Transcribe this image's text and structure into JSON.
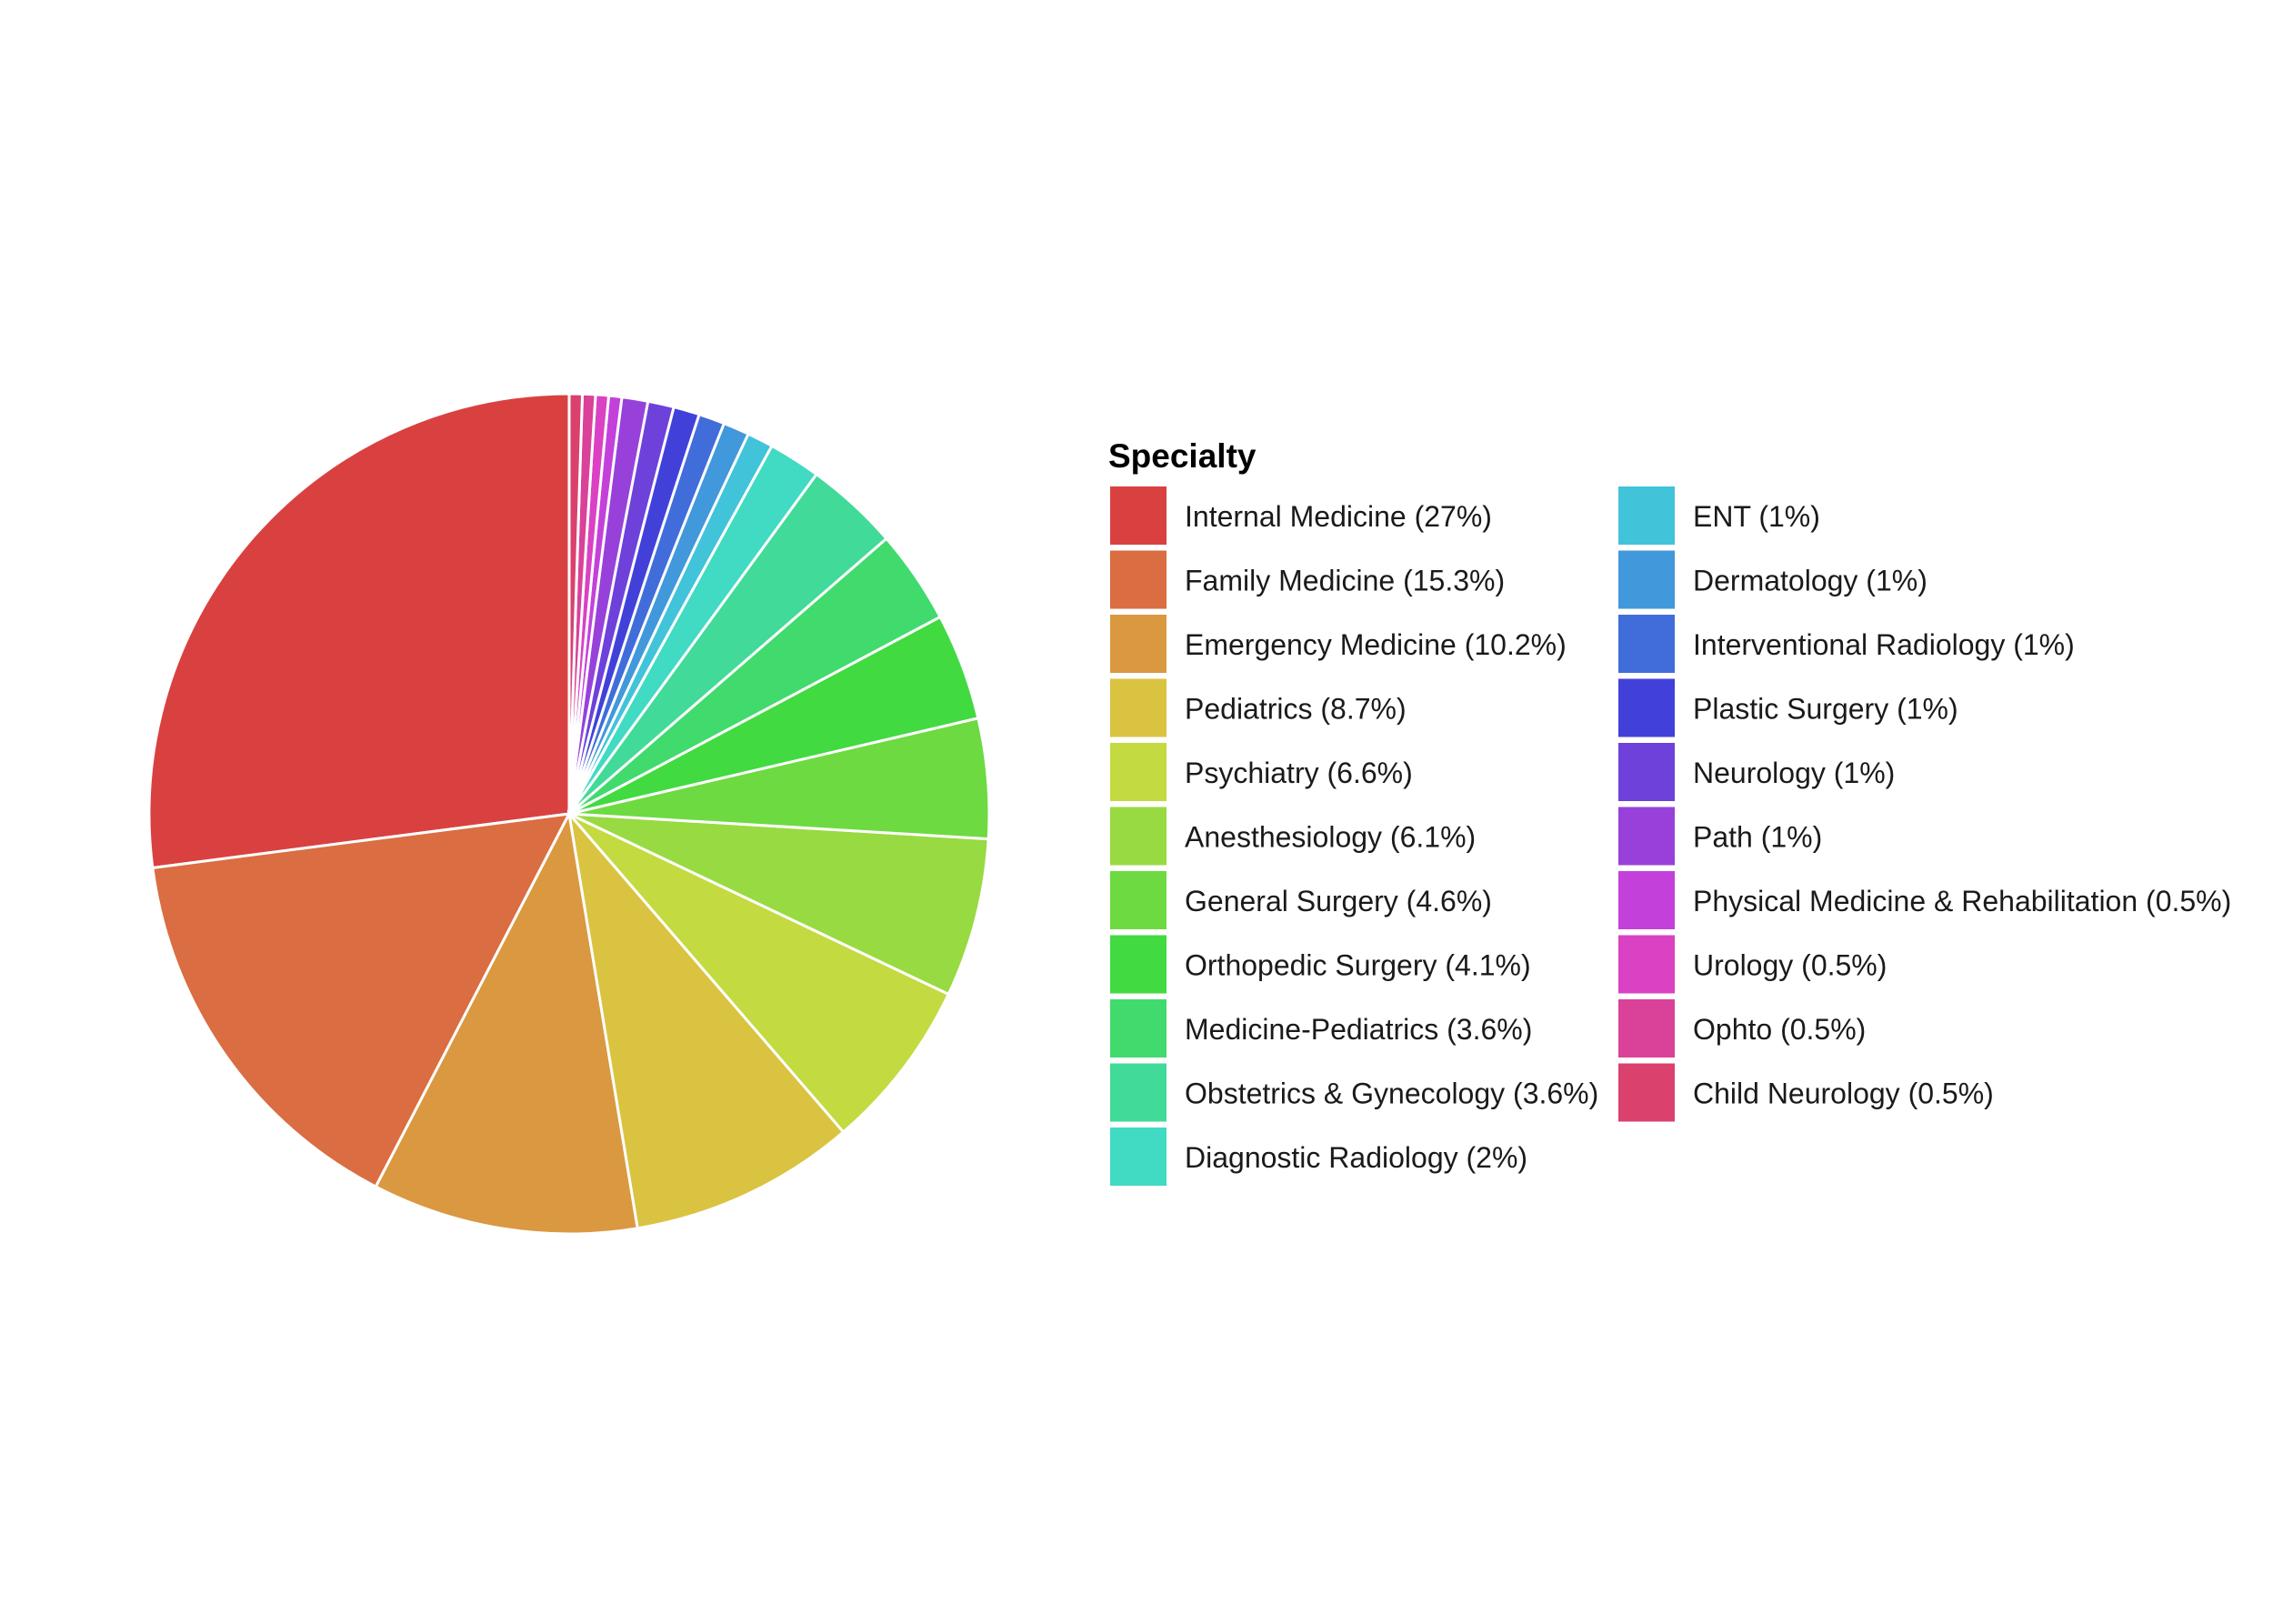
{
  "chart_data": {
    "type": "pie",
    "legend": {
      "title": "Specialty",
      "placement": "right",
      "columns": 2
    },
    "start": "12 o'clock",
    "direction": "counterclockwise",
    "slices": [
      {
        "label": "Internal Medicine (27%)",
        "category": "Internal Medicine",
        "value": 27.0,
        "color": "#D94141"
      },
      {
        "label": "Family Medicine (15.3%)",
        "category": "Family Medicine",
        "value": 15.3,
        "color": "#DA6D41"
      },
      {
        "label": "Emergency Medicine (10.2%)",
        "category": "Emergency Medicine",
        "value": 10.2,
        "color": "#DA9841"
      },
      {
        "label": "Pediatrics (8.7%)",
        "category": "Pediatrics",
        "value": 8.7,
        "color": "#DAC341"
      },
      {
        "label": "Psychiatry (6.6%)",
        "category": "Psychiatry",
        "value": 6.6,
        "color": "#C3DA41"
      },
      {
        "label": "Anesthesiology (6.1%)",
        "category": "Anesthesiology",
        "value": 6.1,
        "color": "#98DA41"
      },
      {
        "label": "General Surgery (4.6%)",
        "category": "General Surgery",
        "value": 4.6,
        "color": "#6DDA41"
      },
      {
        "label": "Orthopedic Surgery (4.1%)",
        "category": "Orthopedic Surgery",
        "value": 4.1,
        "color": "#41DA41"
      },
      {
        "label": "Medicine-Pediatrics (3.6%)",
        "category": "Medicine-Pediatrics",
        "value": 3.6,
        "color": "#41DA6D"
      },
      {
        "label": "Obstetrics & Gynecology (3.6%)",
        "category": "Obstetrics & Gynecology",
        "value": 3.6,
        "color": "#41DA98"
      },
      {
        "label": "Diagnostic Radiology (2%)",
        "category": "Diagnostic Radiology",
        "value": 2.0,
        "color": "#41DAC3"
      },
      {
        "label": "ENT (1%)",
        "category": "ENT",
        "value": 1.0,
        "color": "#41C3DA"
      },
      {
        "label": "Dermatology (1%)",
        "category": "Dermatology",
        "value": 1.0,
        "color": "#4198DA"
      },
      {
        "label": "Interventional Radiology (1%)",
        "category": "Interventional Radiology",
        "value": 1.0,
        "color": "#416DDA"
      },
      {
        "label": "Plastic Surgery (1%)",
        "category": "Plastic Surgery",
        "value": 1.0,
        "color": "#4141DA"
      },
      {
        "label": "Neurology (1%)",
        "category": "Neurology",
        "value": 1.0,
        "color": "#6D41DA"
      },
      {
        "label": "Path (1%)",
        "category": "Path",
        "value": 1.0,
        "color": "#9841DA"
      },
      {
        "label": "Physical Medicine & Rehabilitation (0.5%)",
        "category": "Physical Medicine & Rehabilitation",
        "value": 0.5,
        "color": "#C341DA"
      },
      {
        "label": "Urology (0.5%)",
        "category": "Urology",
        "value": 0.5,
        "color": "#DA41C3"
      },
      {
        "label": "Ophto (0.5%)",
        "category": "Ophto",
        "value": 0.5,
        "color": "#DA4198"
      },
      {
        "label": "Child Neurology (0.5%)",
        "category": "Child Neurology",
        "value": 0.5,
        "color": "#DA416D"
      }
    ]
  }
}
